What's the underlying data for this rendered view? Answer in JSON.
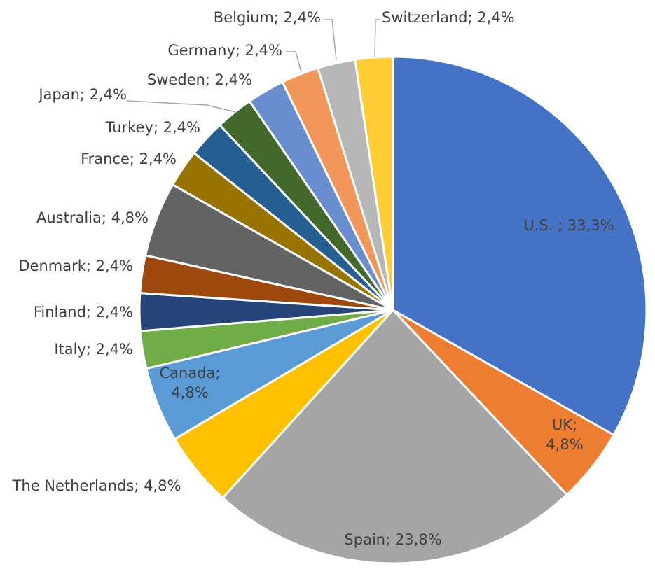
{
  "chart_data": {
    "type": "pie",
    "title": "",
    "start_angle": "12 o'clock, clockwise",
    "slices": [
      {
        "label": "U.S. ",
        "value": 33.3,
        "display": "33,3%",
        "color": "#4472c4"
      },
      {
        "label": "UK",
        "value": 4.8,
        "display": "4,8%",
        "color": "#ed7d31"
      },
      {
        "label": "Spain",
        "value": 23.8,
        "display": "23,8%",
        "color": "#a5a5a5"
      },
      {
        "label": "The Netherlands",
        "value": 4.8,
        "display": "4,8%",
        "color": "#ffc000"
      },
      {
        "label": "Canada",
        "value": 4.8,
        "display": "4,8%",
        "color": "#5b9bd5"
      },
      {
        "label": "Italy",
        "value": 2.4,
        "display": "2,4%",
        "color": "#70ad47"
      },
      {
        "label": "Finland",
        "value": 2.4,
        "display": "2,4%",
        "color": "#264478"
      },
      {
        "label": "Denmark",
        "value": 2.4,
        "display": "2,4%",
        "color": "#9e480e"
      },
      {
        "label": "Australia",
        "value": 4.8,
        "display": "4,8%",
        "color": "#636363"
      },
      {
        "label": "France",
        "value": 2.4,
        "display": "2,4%",
        "color": "#997300"
      },
      {
        "label": "Turkey",
        "value": 2.4,
        "display": "2,4%",
        "color": "#255e91"
      },
      {
        "label": "Japan",
        "value": 2.4,
        "display": "2,4%",
        "color": "#43682b"
      },
      {
        "label": "Sweden",
        "value": 2.4,
        "display": "2,4%",
        "color": "#698ed0"
      },
      {
        "label": "Germany",
        "value": 2.4,
        "display": "2,4%",
        "color": "#f1975a"
      },
      {
        "label": "Belgium",
        "value": 2.4,
        "display": "2,4%",
        "color": "#b7b7b7"
      },
      {
        "label": "Switzerland",
        "value": 2.4,
        "display": "2,4%",
        "color": "#ffcd33"
      }
    ]
  }
}
